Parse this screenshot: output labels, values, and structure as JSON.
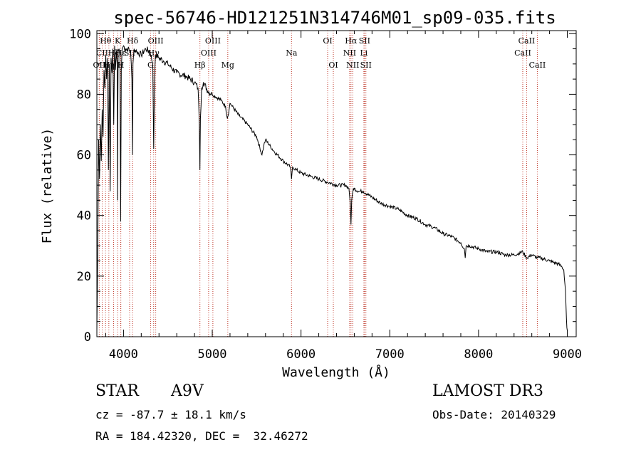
{
  "chart_data": {
    "type": "line",
    "title": "spec-56746-HD121251N314746M01_sp09-035.fits",
    "xlabel": "Wavelength (Å)",
    "ylabel": "Flux (relative)",
    "xlim": [
      3700,
      9100
    ],
    "ylim": [
      0,
      101
    ],
    "xticks": [
      4000,
      5000,
      6000,
      7000,
      8000,
      9000
    ],
    "yticks": [
      0,
      20,
      40,
      60,
      80,
      100
    ],
    "grid": false,
    "series": [
      {
        "name": "spectrum",
        "color": "#000000",
        "x": [
          3700,
          3710,
          3720,
          3730,
          3740,
          3750,
          3760,
          3770,
          3780,
          3790,
          3800,
          3810,
          3820,
          3830,
          3840,
          3850,
          3860,
          3870,
          3880,
          3890,
          3900,
          3910,
          3920,
          3930,
          3933,
          3936,
          3940,
          3950,
          3960,
          3968,
          3975,
          3985,
          4000,
          4020,
          4050,
          4080,
          4095,
          4101,
          4107,
          4120,
          4150,
          4200,
          4250,
          4300,
          4330,
          4340,
          4350,
          4360,
          4400,
          4450,
          4500,
          4600,
          4700,
          4800,
          4840,
          4855,
          4861,
          4867,
          4880,
          4900,
          4950,
          5000,
          5100,
          5150,
          5170,
          5190,
          5200,
          5300,
          5400,
          5500,
          5560,
          5580,
          5600,
          5700,
          5800,
          5880,
          5893,
          5905,
          5950,
          6000,
          6100,
          6200,
          6300,
          6400,
          6500,
          6540,
          6555,
          6563,
          6571,
          6590,
          6650,
          6700,
          6800,
          6900,
          7000,
          7100,
          7200,
          7300,
          7400,
          7500,
          7600,
          7700,
          7800,
          7840,
          7850,
          7860,
          7900,
          8000,
          8100,
          8200,
          8300,
          8400,
          8498,
          8542,
          8600,
          8662,
          8700,
          8800,
          8900,
          8940,
          8960,
          8980,
          8990,
          8995,
          9000
        ],
        "y": [
          2,
          28,
          65,
          52,
          70,
          58,
          75,
          66,
          88,
          82,
          93,
          85,
          92,
          55,
          90,
          48,
          92,
          87,
          95,
          70,
          96,
          88,
          94,
          90,
          45,
          72,
          94,
          95,
          92,
          38,
          88,
          95,
          96,
          95,
          95,
          94,
          85,
          60,
          90,
          95,
          94,
          93,
          95,
          94,
          90,
          62,
          86,
          93,
          92,
          91,
          90,
          87,
          86,
          84,
          82,
          70,
          55,
          72,
          82,
          84,
          81,
          80,
          78,
          76,
          72,
          75,
          77,
          73,
          70,
          66,
          60,
          63,
          65,
          61,
          58,
          56,
          52,
          56,
          55,
          54,
          53,
          52,
          51,
          50,
          50,
          49,
          44,
          37,
          45,
          49,
          48,
          48,
          46,
          44,
          43,
          42,
          40,
          39,
          37,
          36,
          34,
          33,
          31,
          29,
          26,
          30,
          30,
          29,
          28,
          28,
          27,
          27,
          28,
          26,
          27,
          26,
          26,
          25,
          24,
          23,
          22,
          15,
          6,
          3,
          2
        ]
      }
    ],
    "lines": [
      {
        "name": "OII",
        "x": 3727,
        "row": 3
      },
      {
        "name": "CII",
        "x": 3760,
        "row": 2
      },
      {
        "name": "Hθ",
        "x": 3798,
        "row": 1
      },
      {
        "name": "Hη",
        "x": 3835,
        "row": 3
      },
      {
        "name": "Hζ",
        "x": 3889,
        "row": 2
      },
      {
        "name": "K",
        "x": 3934,
        "row": 1
      },
      {
        "name": "H",
        "x": 3969,
        "row": 3
      },
      {
        "name": "Hε",
        "x": 3970,
        "row": 2
      },
      {
        "name": "Hδ",
        "x": 4102,
        "row": 1
      },
      {
        "name": "SII",
        "x": 4069,
        "row": 2
      },
      {
        "name": "OIII",
        "x": 4363,
        "row": 1
      },
      {
        "name": "Hγ",
        "x": 4340,
        "row": 2
      },
      {
        "name": "G",
        "x": 4305,
        "row": 3
      },
      {
        "name": "Hβ",
        "x": 4861,
        "row": 3
      },
      {
        "name": "OIII",
        "x": 4959,
        "row": 2
      },
      {
        "name": "OIII",
        "x": 5007,
        "row": 1
      },
      {
        "name": "Mg",
        "x": 5175,
        "row": 3
      },
      {
        "name": "Na",
        "x": 5893,
        "row": 2
      },
      {
        "name": "OI",
        "x": 6300,
        "row": 1
      },
      {
        "name": "OI",
        "x": 6364,
        "row": 3
      },
      {
        "name": "NII",
        "x": 6548,
        "row": 2
      },
      {
        "name": "Hα",
        "x": 6563,
        "row": 1
      },
      {
        "name": "NII",
        "x": 6583,
        "row": 3
      },
      {
        "name": "Li",
        "x": 6708,
        "row": 2
      },
      {
        "name": "SII",
        "x": 6716,
        "row": 1
      },
      {
        "name": "SII",
        "x": 6731,
        "row": 3
      },
      {
        "name": "CaII",
        "x": 8498,
        "row": 2
      },
      {
        "name": "CaII",
        "x": 8542,
        "row": 1
      },
      {
        "name": "CaII",
        "x": 8662,
        "row": 3
      }
    ],
    "line_color": "#c0392b"
  },
  "footer": {
    "class_label": "STAR",
    "subclass": "A9V",
    "survey": "LAMOST DR3",
    "redshift": "cz = -87.7 ± 18.1 km/s",
    "obs_date": "Obs-Date: 20140329",
    "coords": "RA = 184.42320, DEC =  32.46272"
  }
}
